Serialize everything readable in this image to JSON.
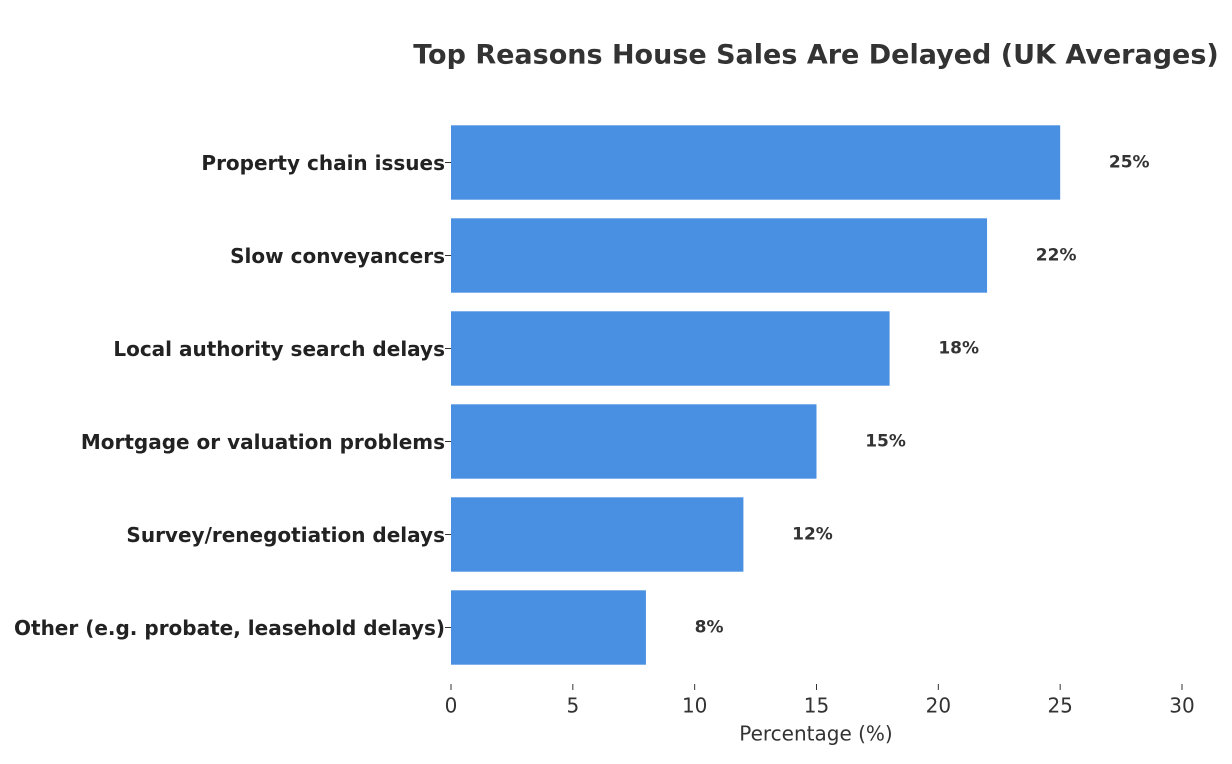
{
  "chart_data": {
    "type": "barh",
    "title": "Top Reasons House Sales Are Delayed (UK Averages)",
    "x_label": "Percentage (%)",
    "categories": [
      "Property chain issues",
      "Slow conveyancers",
      "Local authority search delays",
      "Mortgage or valuation problems",
      "Survey/renegotiation delays",
      "Other (e.g. probate, leasehold delays)"
    ],
    "values": [
      25,
      22,
      18,
      15,
      12,
      8
    ],
    "value_labels": [
      "25%",
      "22%",
      "18%",
      "15%",
      "12%",
      "8%"
    ],
    "color": "#4a90e2",
    "xlim": [
      0,
      30
    ],
    "xticks": [
      0,
      5,
      10,
      15,
      20,
      25,
      30
    ]
  }
}
